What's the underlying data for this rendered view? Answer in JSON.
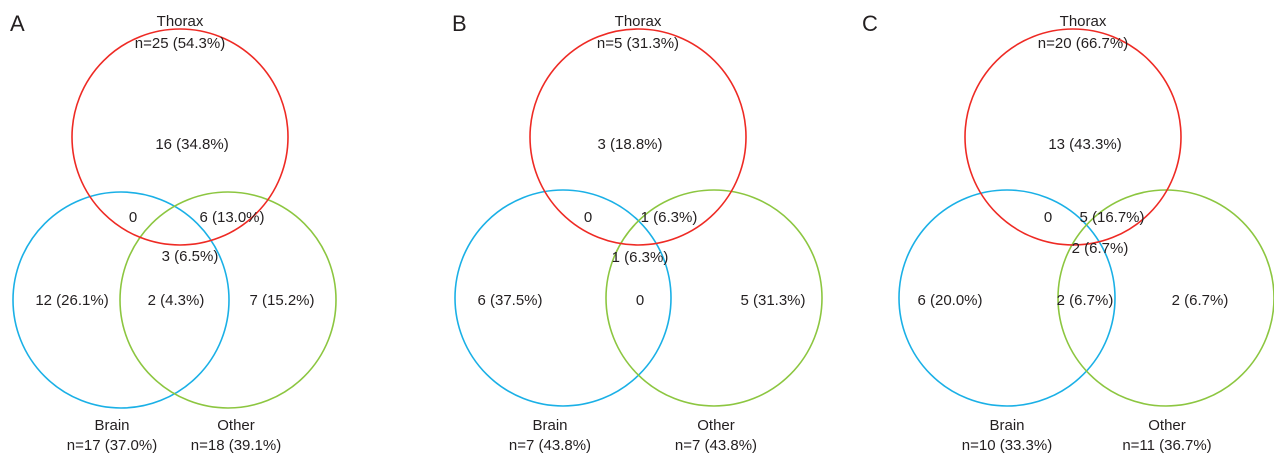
{
  "colors": {
    "thorax": "#ee2a24",
    "brain": "#1ab0e6",
    "other": "#8cc640",
    "text": "#231f20"
  },
  "panels": [
    {
      "letter": "A",
      "thorax": {
        "name": "Thorax",
        "stat": "n=25 (54.3%)"
      },
      "brain": {
        "name": "Brain",
        "stat": "n=17 (37.0%)"
      },
      "other": {
        "name": "Other",
        "stat": "n=18 (39.1%)"
      },
      "regions": {
        "thorax_only": "16 (34.8%)",
        "thorax_brain": "0",
        "thorax_other": "6 (13.0%)",
        "all_three": "3 (6.5%)",
        "brain_only": "12 (26.1%)",
        "brain_other": "2 (4.3%)",
        "other_only": "7 (15.2%)"
      }
    },
    {
      "letter": "B",
      "thorax": {
        "name": "Thorax",
        "stat": "n=5 (31.3%)"
      },
      "brain": {
        "name": "Brain",
        "stat": "n=7 (43.8%)"
      },
      "other": {
        "name": "Other",
        "stat": "n=7 (43.8%)"
      },
      "regions": {
        "thorax_only": "3 (18.8%)",
        "thorax_brain": "0",
        "thorax_other": "1 (6.3%)",
        "all_three": "1 (6.3%)",
        "brain_only": "6 (37.5%)",
        "brain_other": "0",
        "other_only": "5 (31.3%)"
      }
    },
    {
      "letter": "C",
      "thorax": {
        "name": "Thorax",
        "stat": "n=20 (66.7%)"
      },
      "brain": {
        "name": "Brain",
        "stat": "n=10 (33.3%)"
      },
      "other": {
        "name": "Other",
        "stat": "n=11 (36.7%)"
      },
      "regions": {
        "thorax_only": "13 (43.3%)",
        "thorax_brain": "0",
        "thorax_other": "5 (16.7%)",
        "all_three": "2 (6.7%)",
        "brain_only": "6 (20.0%)",
        "brain_other": "2 (6.7%)",
        "other_only": "2 (6.7%)"
      }
    }
  ]
}
